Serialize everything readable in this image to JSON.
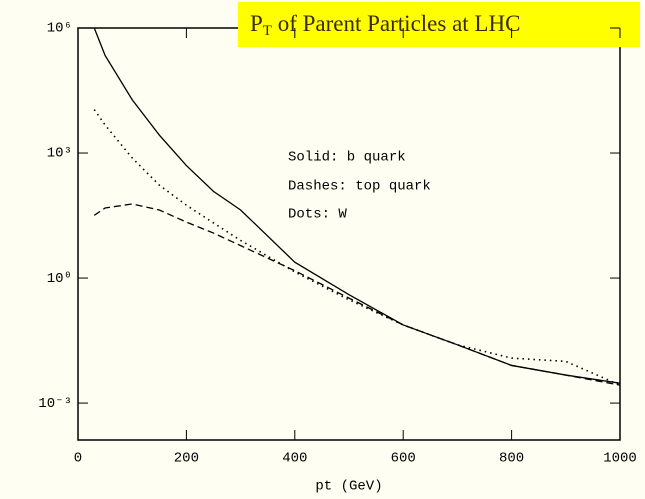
{
  "chart_data": {
    "type": "line",
    "title_parts": [
      "P",
      "T",
      " of Parent Particles at LHC"
    ],
    "x_label": "pt (GeV)",
    "annotations": [
      "Solid: b quark",
      "Dashes: top quark",
      "Dots: W"
    ],
    "x": [
      30,
      50,
      100,
      150,
      200,
      250,
      300,
      400,
      500,
      600,
      700,
      800,
      900,
      1000
    ],
    "series": [
      {
        "name": "b quark",
        "style": "solid",
        "color": "#000000",
        "values": [
          1000000,
          220000,
          19000,
          2700,
          500,
          120,
          43,
          2.4,
          0.4,
          0.075,
          0.025,
          0.008,
          0.0047,
          0.003
        ]
      },
      {
        "name": "top quark",
        "style": "dashed",
        "color": "#000000",
        "values": [
          32,
          48,
          60,
          43,
          22,
          12,
          6,
          1.5,
          0.33,
          0.075,
          0.025,
          0.008,
          0.0047,
          0.0027
        ]
      },
      {
        "name": "W",
        "style": "dotted",
        "color": "#000000",
        "values": [
          11000,
          4700,
          760,
          170,
          56,
          21,
          8,
          1.4,
          0.3,
          0.075,
          0.025,
          0.012,
          0.01,
          0.0027
        ]
      }
    ],
    "xlim": [
      0,
      1000
    ],
    "xticks": [
      0,
      200,
      400,
      600,
      800,
      1000
    ],
    "ylim": [
      0.00013,
      1000000
    ],
    "ylog": true,
    "yticks": [
      {
        "value": 0.001,
        "label": "10⁻³"
      },
      {
        "value": 1,
        "label": "10⁰"
      },
      {
        "value": 1000,
        "label": "10³"
      },
      {
        "value": 1000000,
        "label": "10⁶"
      }
    ],
    "grid": false
  }
}
